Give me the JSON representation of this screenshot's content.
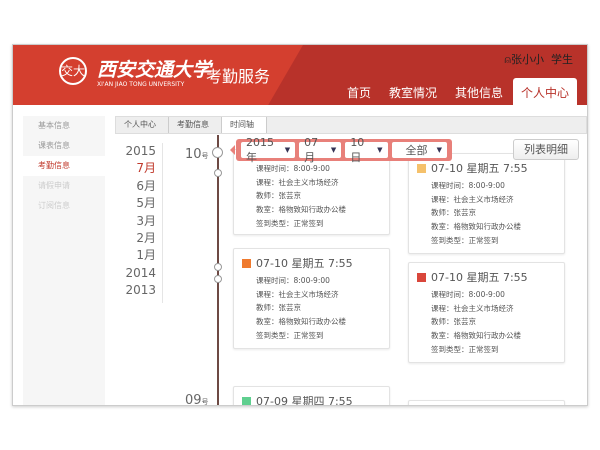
{
  "header": {
    "logo_text": "交大",
    "school_cn": "西安交通大学",
    "school_en": "XI'AN JIAO TONG UNIVERSITY",
    "service": "考勤服务",
    "user_name": "张小小",
    "user_role": "学生"
  },
  "nav": [
    {
      "label": "首页"
    },
    {
      "label": "教室情况"
    },
    {
      "label": "其他信息"
    },
    {
      "label": "个人中心"
    }
  ],
  "sidebar": [
    {
      "label": "基本信息"
    },
    {
      "label": "课表信息"
    },
    {
      "label": "考勤信息"
    },
    {
      "label": "请假申请"
    },
    {
      "label": "订阅信息"
    }
  ],
  "breadcrumb": [
    {
      "label": "个人中心"
    },
    {
      "label": "考勤信息"
    },
    {
      "label": "时间轴"
    }
  ],
  "years": [
    "2015",
    "7月",
    "6月",
    "5月",
    "3月",
    "2月",
    "1月",
    "2014",
    "2013"
  ],
  "days": [
    {
      "num": "10",
      "unit": "号"
    },
    {
      "num": "09",
      "unit": "号"
    }
  ],
  "filter": {
    "year": "2015年",
    "month": "07月",
    "day": "10日",
    "type": "全部"
  },
  "list_button": "列表明细",
  "cards": [
    {
      "title": "07-10 星期五 7:55",
      "color": "#f5c16b",
      "rows": [
        "课程时间：8:00-9:00",
        "课程：社会主义市场经济",
        "教师：张芸京",
        "教室：格物致知行政办公楼",
        "签到类型：正常签到"
      ]
    },
    {
      "title": "07-10 星期五 7:55",
      "color": "#f5c16b",
      "rows": [
        "课程时间：8:00-9:00",
        "课程：社会主义市场经济",
        "教师：张芸京",
        "教室：格物致知行政办公楼",
        "签到类型：正常签到"
      ]
    },
    {
      "title": "07-10 星期五 7:55",
      "color": "#ef7a2e",
      "rows": [
        "课程时间：8:00-9:00",
        "课程：社会主义市场经济",
        "教师：张芸京",
        "教室：格物致知行政办公楼",
        "签到类型：正常签到"
      ]
    },
    {
      "title": "07-10 星期五 7:55",
      "color": "#d9463b",
      "rows": [
        "课程时间：8:00-9:00",
        "课程：社会主义市场经济",
        "教师：张芸京",
        "教室：格物致知行政办公楼",
        "签到类型：正常签到"
      ]
    },
    {
      "title": "07-09 星期四 7:55",
      "color": "#5fcf8f",
      "rows": []
    }
  ]
}
